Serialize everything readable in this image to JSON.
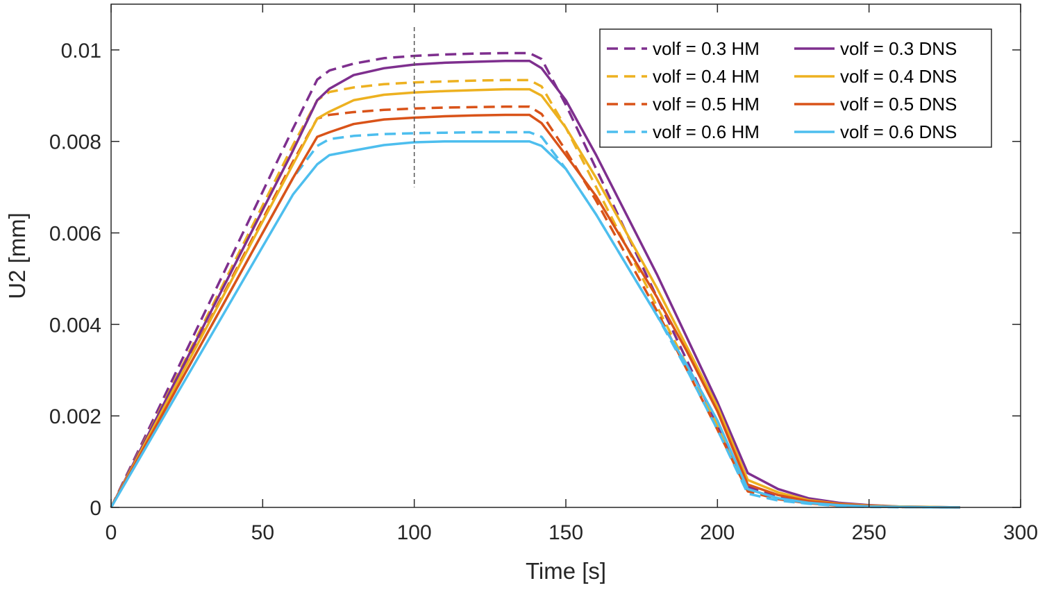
{
  "chart_data": {
    "type": "line",
    "title": "",
    "xlabel": "Time [s]",
    "ylabel": "U2 [mm]",
    "xlim": [
      0,
      300
    ],
    "ylim": [
      0,
      0.011
    ],
    "xticks": [
      0,
      50,
      100,
      150,
      200,
      250,
      300
    ],
    "yticks": [
      0,
      0.002,
      0.004,
      0.006,
      0.008,
      0.01
    ],
    "xtick_labels": [
      "0",
      "50",
      "100",
      "150",
      "200",
      "250",
      "300"
    ],
    "ytick_labels": [
      "0",
      "0.002",
      "0.004",
      "0.006",
      "0.008",
      "0.01"
    ],
    "grid": false,
    "legend_position": "top-right",
    "reference_line": {
      "x": 100,
      "y_range": [
        0.007,
        0.0105
      ],
      "style": "dashed"
    },
    "x": [
      0,
      10,
      20,
      30,
      40,
      50,
      60,
      68,
      72,
      80,
      90,
      100,
      110,
      120,
      130,
      138,
      142,
      150,
      160,
      170,
      180,
      190,
      200,
      210,
      220,
      230,
      240,
      250,
      260,
      270,
      280
    ],
    "series": [
      {
        "name": "volf = 0.3 HM",
        "label": "volf = 0.3 HM",
        "color": "#7E2F8E",
        "style": "dashed",
        "values": [
          0,
          0.00138,
          0.00276,
          0.00414,
          0.00552,
          0.0069,
          0.00828,
          0.00935,
          0.00955,
          0.0097,
          0.00982,
          0.00987,
          0.0099,
          0.00992,
          0.00993,
          0.00993,
          0.0098,
          0.0088,
          0.0074,
          0.006,
          0.0046,
          0.0032,
          0.0018,
          0.00045,
          0.00025,
          0.00012,
          6e-05,
          3e-05,
          1e-05,
          5e-06,
          0
        ]
      },
      {
        "name": "volf = 0.4 HM",
        "label": "volf = 0.4 HM",
        "color": "#EDB120",
        "style": "dashed",
        "values": [
          0,
          0.00132,
          0.00264,
          0.00396,
          0.00528,
          0.0066,
          0.00792,
          0.0089,
          0.00908,
          0.00918,
          0.00925,
          0.00929,
          0.00931,
          0.00933,
          0.00934,
          0.00934,
          0.0092,
          0.0083,
          0.007,
          0.0057,
          0.0044,
          0.0031,
          0.0018,
          0.0004,
          0.0002,
          0.0001,
          5e-05,
          2e-05,
          1e-05,
          4e-06,
          0
        ]
      },
      {
        "name": "volf = 0.5 HM",
        "label": "volf = 0.5 HM",
        "color": "#D95319",
        "style": "dashed",
        "values": [
          0,
          0.00126,
          0.00252,
          0.00378,
          0.00504,
          0.0063,
          0.00756,
          0.0085,
          0.00858,
          0.00864,
          0.00869,
          0.00872,
          0.00874,
          0.00875,
          0.00876,
          0.00876,
          0.0086,
          0.0078,
          0.0067,
          0.0055,
          0.0043,
          0.003,
          0.0017,
          0.00035,
          0.00018,
          9e-05,
          4e-05,
          2e-05,
          1e-05,
          3e-06,
          0
        ]
      },
      {
        "name": "volf = 0.6 HM",
        "label": "volf = 0.6 HM",
        "color": "#4DBEEE",
        "style": "dashed",
        "values": [
          0,
          0.0012,
          0.0024,
          0.0036,
          0.0048,
          0.006,
          0.0072,
          0.0079,
          0.00805,
          0.00812,
          0.00816,
          0.00818,
          0.00819,
          0.0082,
          0.0082,
          0.0082,
          0.0081,
          0.0074,
          0.0064,
          0.0053,
          0.0042,
          0.003,
          0.0017,
          0.0003,
          0.00015,
          8e-05,
          3e-05,
          1e-05,
          5e-06,
          2e-06,
          0
        ]
      },
      {
        "name": "volf = 0.3 DNS",
        "label": "volf = 0.3 DNS",
        "color": "#7E2F8E",
        "style": "solid",
        "values": [
          0,
          0.0013,
          0.0026,
          0.0039,
          0.0052,
          0.0065,
          0.0078,
          0.0089,
          0.00915,
          0.00945,
          0.0096,
          0.00968,
          0.00972,
          0.00974,
          0.00976,
          0.00976,
          0.0096,
          0.0089,
          0.0077,
          0.0064,
          0.0051,
          0.0037,
          0.0023,
          0.00075,
          0.0004,
          0.0002,
          0.0001,
          5e-05,
          2e-05,
          1e-05,
          0
        ]
      },
      {
        "name": "volf = 0.4 DNS",
        "label": "volf = 0.4 DNS",
        "color": "#EDB120",
        "style": "solid",
        "values": [
          0,
          0.00125,
          0.0025,
          0.00375,
          0.005,
          0.00625,
          0.0075,
          0.0085,
          0.00865,
          0.0089,
          0.00902,
          0.00907,
          0.0091,
          0.00912,
          0.00914,
          0.00914,
          0.009,
          0.0083,
          0.0072,
          0.006,
          0.0048,
          0.0035,
          0.0022,
          0.0006,
          0.00033,
          0.00016,
          8e-05,
          4e-05,
          2e-05,
          1e-05,
          0
        ]
      },
      {
        "name": "volf = 0.5 DNS",
        "label": "volf = 0.5 DNS",
        "color": "#D95319",
        "style": "solid",
        "values": [
          0,
          0.0012,
          0.0024,
          0.0036,
          0.0048,
          0.006,
          0.0072,
          0.0081,
          0.0082,
          0.00838,
          0.00848,
          0.00852,
          0.00855,
          0.00857,
          0.00858,
          0.00858,
          0.0084,
          0.0077,
          0.0068,
          0.0057,
          0.0046,
          0.0034,
          0.0021,
          0.0005,
          0.00027,
          0.00014,
          7e-05,
          3e-05,
          1e-05,
          5e-06,
          0
        ]
      },
      {
        "name": "volf = 0.6 DNS",
        "label": "volf = 0.6 DNS",
        "color": "#4DBEEE",
        "style": "solid",
        "values": [
          0,
          0.00114,
          0.00228,
          0.00342,
          0.00456,
          0.0057,
          0.00684,
          0.0075,
          0.0077,
          0.0078,
          0.00792,
          0.00798,
          0.008,
          0.008,
          0.008,
          0.008,
          0.0079,
          0.0074,
          0.0064,
          0.0053,
          0.0042,
          0.0031,
          0.0019,
          0.0004,
          0.0002,
          0.0001,
          5e-05,
          2e-05,
          1e-05,
          4e-06,
          0
        ]
      }
    ]
  }
}
